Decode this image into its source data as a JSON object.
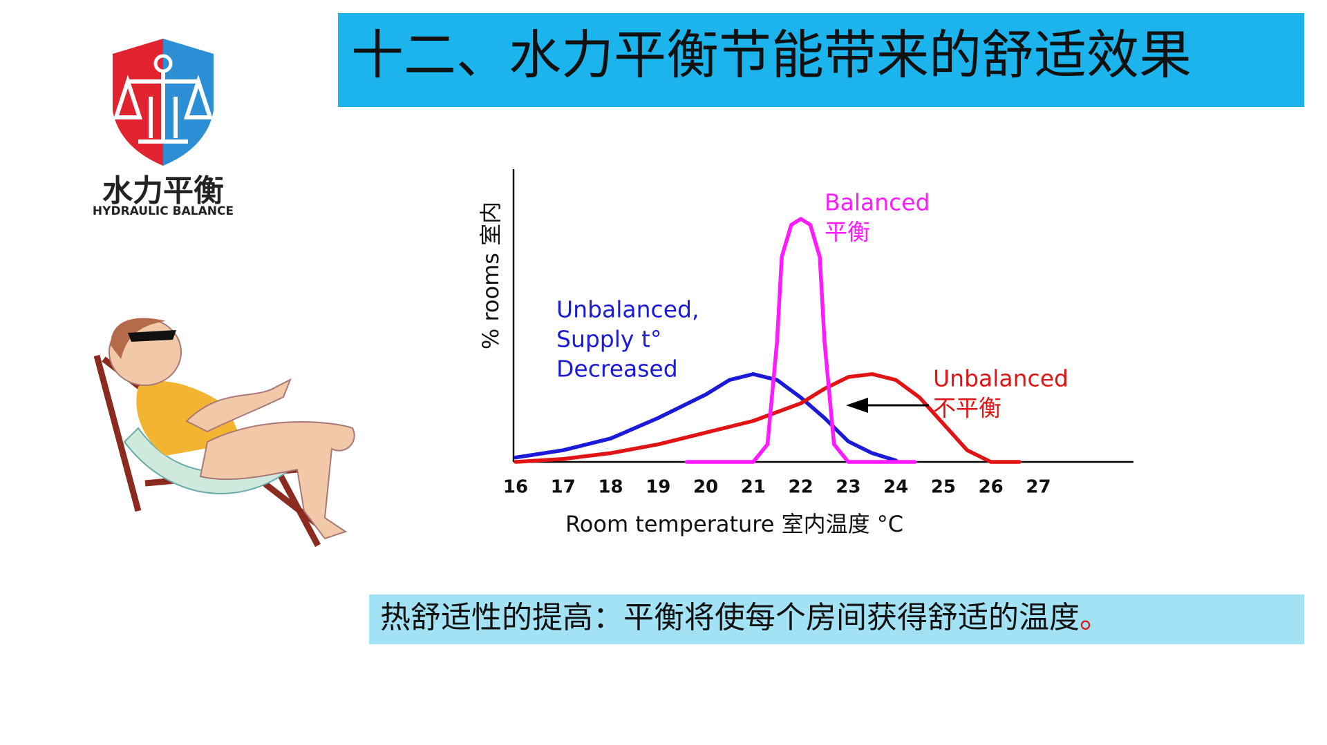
{
  "title": "十二、水力平衡节能带来的舒适效果",
  "logo": {
    "name": "水力平衡",
    "subtitle": "HYDRAULIC BALANCE"
  },
  "chart_data": {
    "type": "line",
    "x_label": "Room temperature 室内温度 °C",
    "y_label": "% rooms 室内",
    "xlim": [
      16,
      29
    ],
    "ylim": [
      0,
      100
    ],
    "xticks": [
      16,
      17,
      18,
      19,
      20,
      21,
      22,
      23,
      24,
      25,
      26,
      27
    ],
    "series": [
      {
        "label": [
          "Unbalanced,",
          "Supply t°",
          "Decreased"
        ],
        "color": "#1a1ad8",
        "x": [
          16,
          17,
          18,
          19,
          20,
          20.5,
          21,
          21.5,
          22,
          22.5,
          23,
          23.5,
          24
        ],
        "values": [
          1.5,
          4,
          8,
          15,
          23,
          28,
          30,
          28,
          22,
          15,
          7,
          3,
          0.5
        ]
      },
      {
        "label": [
          "Unbalanced",
          "不平衡"
        ],
        "color": "#e01414",
        "x": [
          16,
          17,
          18,
          19,
          20,
          21,
          22,
          22.5,
          23,
          23.5,
          24,
          24.5,
          25,
          25.5,
          26,
          26.6
        ],
        "values": [
          0,
          1,
          3,
          6,
          10,
          14,
          20,
          25,
          29,
          30,
          28,
          22,
          13,
          4,
          0,
          0
        ]
      },
      {
        "label": [
          "Balanced",
          "平衡"
        ],
        "color": "#ff1aff",
        "x": [
          19.6,
          21,
          21.3,
          21.5,
          21.6,
          21.8,
          22,
          22.2,
          22.4,
          22.5,
          22.7,
          23,
          24.4
        ],
        "values": [
          0,
          0,
          6,
          41,
          70,
          81,
          83,
          81,
          70,
          41,
          6,
          0,
          0
        ]
      }
    ]
  },
  "caption": {
    "text": "热舒适性的提高：平衡将使每个房间获得舒适的温度",
    "end": "。"
  }
}
